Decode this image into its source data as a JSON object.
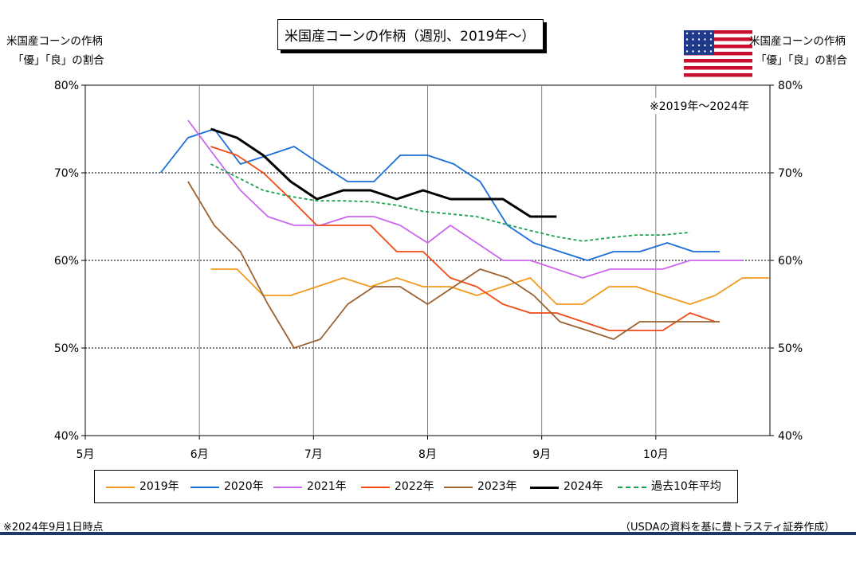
{
  "chart_data": {
    "type": "line",
    "title": "米国産コーンの作柄（週別、2019年～）",
    "ylabel_left": [
      "米国産コーンの作柄",
      "「優」「良」の割合"
    ],
    "ylabel_right": [
      "米国産コーンの作柄",
      "「優」「良」の割合"
    ],
    "period_note": "※2019年～2024年",
    "ylim": [
      40,
      80
    ],
    "y_ticks": [
      "40%",
      "50%",
      "60%",
      "70%",
      "80%"
    ],
    "y_tick_values": [
      40,
      50,
      60,
      70,
      80
    ],
    "x_tick_values": [
      5,
      6,
      7,
      8,
      9,
      10
    ],
    "x_ticks": [
      "5月",
      "6月",
      "7月",
      "8月",
      "9月",
      "10月"
    ],
    "xlim": [
      5,
      11
    ],
    "grid": true,
    "legend_position": "bottom",
    "series": [
      {
        "name": "2019年",
        "color": "#f29a1f",
        "dash": "",
        "x": [
          6.1,
          6.33,
          6.56,
          6.8,
          7.03,
          7.26,
          7.5,
          7.73,
          7.96,
          8.2,
          8.43,
          8.66,
          8.9,
          9.13,
          9.36,
          9.59,
          9.83,
          10.06,
          10.3,
          10.52,
          10.76,
          10.99
        ],
        "values": [
          59,
          59,
          56,
          56,
          57,
          58,
          57,
          58,
          57,
          57,
          56,
          57,
          58,
          55,
          55,
          57,
          57,
          56,
          55,
          56,
          58,
          58
        ]
      },
      {
        "name": "2020年",
        "color": "#1a6fd6",
        "dash": "",
        "x": [
          5.66,
          5.9,
          6.13,
          6.36,
          6.6,
          6.83,
          7.06,
          7.3,
          7.53,
          7.76,
          8.0,
          8.23,
          8.46,
          8.7,
          8.93,
          9.16,
          9.4,
          9.63,
          9.86,
          10.1,
          10.33,
          10.56
        ],
        "values": [
          70,
          74,
          75,
          71,
          72,
          73,
          71,
          69,
          69,
          72,
          72,
          71,
          69,
          64,
          62,
          61,
          60,
          61,
          61,
          62,
          61,
          61
        ]
      },
      {
        "name": "2021年",
        "color": "#cc66ee",
        "dash": "",
        "x": [
          5.9,
          6.13,
          6.36,
          6.6,
          6.83,
          7.06,
          7.3,
          7.53,
          7.76,
          8.0,
          8.2,
          8.43,
          8.66,
          8.9,
          9.13,
          9.36,
          9.6,
          9.83,
          10.06,
          10.3,
          10.53,
          10.76
        ],
        "values": [
          76,
          72,
          68,
          65,
          64,
          64,
          65,
          65,
          64,
          62,
          64,
          62,
          60,
          60,
          59,
          58,
          59,
          59,
          59,
          60,
          60,
          60
        ]
      },
      {
        "name": "2022年",
        "color": "#f04a14",
        "dash": "",
        "x": [
          6.1,
          6.33,
          6.56,
          6.8,
          7.03,
          7.26,
          7.5,
          7.73,
          7.96,
          8.2,
          8.43,
          8.66,
          8.9,
          9.13,
          9.36,
          9.59,
          9.83,
          10.06,
          10.3,
          10.52
        ],
        "values": [
          73,
          72,
          70,
          67,
          64,
          64,
          64,
          61,
          61,
          58,
          57,
          55,
          54,
          54,
          53,
          52,
          52,
          52,
          54,
          53
        ]
      },
      {
        "name": "2023年",
        "color": "#9b6231",
        "dash": "",
        "x": [
          5.9,
          6.13,
          6.36,
          6.6,
          6.83,
          7.06,
          7.3,
          7.53,
          7.76,
          8.0,
          8.23,
          8.46,
          8.7,
          8.93,
          9.16,
          9.4,
          9.63,
          9.86,
          10.1,
          10.33,
          10.56
        ],
        "values": [
          69,
          64,
          61,
          55,
          50,
          51,
          55,
          57,
          57,
          55,
          57,
          59,
          58,
          56,
          53,
          52,
          51,
          53,
          53,
          53,
          53
        ]
      },
      {
        "name": "2024年",
        "color": "#000000",
        "dash": "",
        "x": [
          6.1,
          6.33,
          6.56,
          6.8,
          7.03,
          7.26,
          7.5,
          7.73,
          7.96,
          8.2,
          8.43,
          8.66,
          8.9,
          9.13
        ],
        "values": [
          75,
          74,
          72,
          69,
          67,
          68,
          68,
          67,
          68,
          67,
          67,
          67,
          65,
          65
        ]
      },
      {
        "name": "過去10年平均",
        "color": "#16a34a",
        "dash": "4,3",
        "x": [
          6.1,
          6.33,
          6.56,
          6.8,
          7.03,
          7.26,
          7.5,
          7.73,
          7.96,
          8.2,
          8.43,
          8.66,
          8.9,
          9.13,
          9.36,
          9.6,
          9.83,
          10.06,
          10.3
        ],
        "values": [
          71,
          69.5,
          68,
          67.3,
          66.8,
          66.8,
          66.7,
          66.3,
          65.6,
          65.3,
          65,
          64.2,
          63.4,
          62.7,
          62.2,
          62.6,
          62.9,
          62.9,
          63.2
        ]
      }
    ]
  },
  "footer": {
    "left_note": "※2024年9月1日時点",
    "source": "（USDAの資料を基に豊トラスティ証券作成）"
  },
  "decorations": [
    "us-flag-icon",
    "corn-icon"
  ]
}
